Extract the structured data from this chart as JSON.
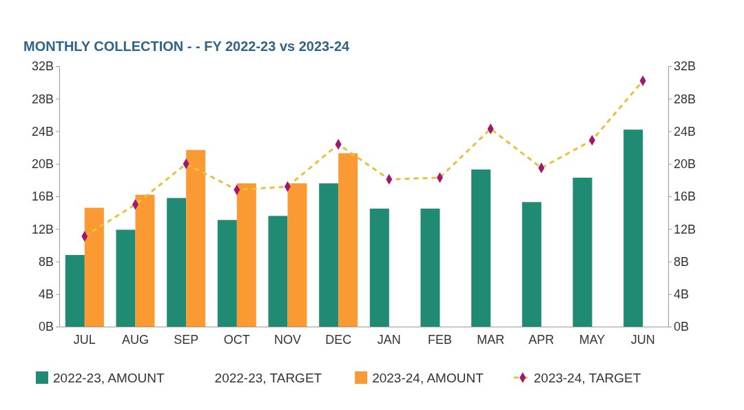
{
  "chart_data": {
    "type": "bar",
    "title": "MONTHLY COLLECTION - - FY 2022-23 vs 2023-24",
    "categories": [
      "JUL",
      "AUG",
      "SEP",
      "OCT",
      "NOV",
      "DEC",
      "JAN",
      "FEB",
      "MAR",
      "APR",
      "MAY",
      "JUN"
    ],
    "series": [
      {
        "name": "2022-23, AMOUNT",
        "color": "#218a73",
        "values": [
          8.8,
          11.9,
          15.8,
          13.1,
          13.6,
          17.6,
          14.5,
          14.5,
          19.3,
          15.3,
          18.3,
          24.2
        ]
      },
      {
        "name": "2022-23, TARGET",
        "type": "line",
        "values": [
          null,
          null,
          null,
          null,
          null,
          null,
          null,
          null,
          null,
          null,
          null,
          null
        ]
      },
      {
        "name": "2023-24, AMOUNT",
        "color": "#fb9a33",
        "values": [
          14.6,
          16.2,
          21.7,
          17.6,
          17.6,
          21.3,
          null,
          null,
          null,
          null,
          null,
          null
        ]
      },
      {
        "name": "2023-24, TARGET",
        "type": "line",
        "color": "#e6c13c",
        "line_style": "dashed",
        "marker": "diamond",
        "colors": [
          "#a3166f",
          "#a3166f",
          "#a3166f",
          "#a3166f",
          "#a3166f",
          "#a3166f",
          "#a3166f",
          "#a3166f",
          "#a3166f",
          "#a3166f",
          "#a3166f",
          "#a3166f"
        ],
        "values": [
          11.1,
          15.0,
          20.0,
          16.8,
          17.2,
          22.4,
          18.1,
          18.3,
          24.3,
          19.5,
          22.9,
          30.2
        ]
      }
    ],
    "ylim": [
      0,
      32
    ],
    "yticks": [
      {
        "value": 0,
        "label": "0B"
      },
      {
        "value": 4,
        "label": "4B"
      },
      {
        "value": 8,
        "label": "8B"
      },
      {
        "value": 12,
        "label": "12B"
      },
      {
        "value": 16,
        "label": "16B"
      },
      {
        "value": 20,
        "label": "20B"
      },
      {
        "value": 24,
        "label": "24B"
      },
      {
        "value": 28,
        "label": "28B"
      },
      {
        "value": 32,
        "label": "32B"
      }
    ],
    "y2lim": [
      0,
      32
    ],
    "y2ticks": [
      {
        "value": 0,
        "label": "0B"
      },
      {
        "value": 4,
        "label": "4B"
      },
      {
        "value": 8,
        "label": "8B"
      },
      {
        "value": 12,
        "label": "12B"
      },
      {
        "value": 16,
        "label": "16B"
      },
      {
        "value": 20,
        "label": "20B"
      },
      {
        "value": 24,
        "label": "24B"
      },
      {
        "value": 28,
        "label": "28B"
      },
      {
        "value": 32,
        "label": "32B"
      }
    ],
    "grid": false,
    "legend": "bottom"
  }
}
